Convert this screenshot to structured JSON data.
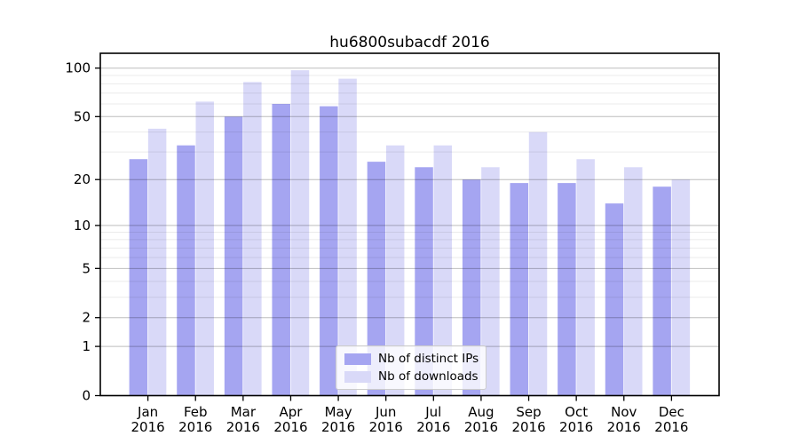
{
  "chart_data": {
    "type": "bar",
    "title": "hu6800subacdf 2016",
    "categories": [
      "Jan",
      "Feb",
      "Mar",
      "Apr",
      "May",
      "Jun",
      "Jul",
      "Aug",
      "Sep",
      "Oct",
      "Nov",
      "Dec"
    ],
    "x_tick_year_label": "2016",
    "series": [
      {
        "name": "Nb of distinct IPs",
        "color": "#a5a5f1",
        "values": [
          27,
          33,
          50,
          60,
          58,
          26,
          24,
          20,
          19,
          19,
          14,
          18
        ]
      },
      {
        "name": "Nb of downloads",
        "color": "#d9d9f8",
        "values": [
          42,
          62,
          82,
          97,
          86,
          33,
          33,
          24,
          40,
          27,
          24,
          20
        ]
      }
    ],
    "xlabel": "",
    "ylabel": "",
    "y_axis": {
      "scale": "log1p",
      "major_ticks": [
        0,
        1,
        2,
        5,
        10,
        20,
        50,
        100
      ],
      "minor_gridlines": [
        3,
        4,
        6,
        7,
        8,
        9,
        30,
        40,
        60,
        70,
        80,
        90
      ],
      "ylim": [
        0,
        125
      ]
    },
    "grid": true,
    "legend_position": "lower-center",
    "colors": {
      "bar_ips": "#a5a5f1",
      "bar_downloads": "#d9d9f8",
      "major_gridline": "rgba(0,0,0,0.26)",
      "minor_gridline": "rgba(0,0,0,0.08)",
      "axis": "#000000",
      "text": "#000000"
    }
  }
}
